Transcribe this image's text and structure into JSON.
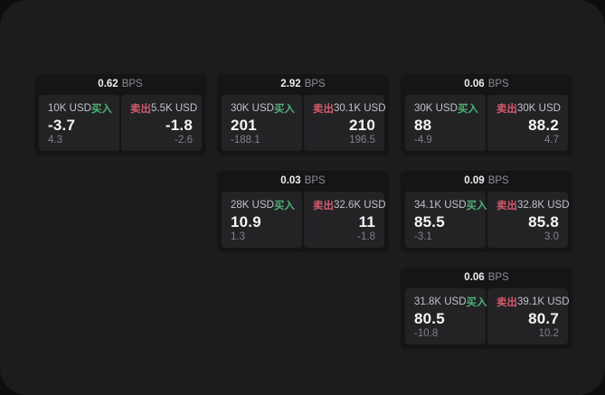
{
  "theme": {
    "bg_outer": "#0e0e10",
    "bg_panel": "#1c1c1e",
    "bg_card": "#151517",
    "bg_subcard": "#232326",
    "buy_green": "#4db173",
    "sell_red": "#d15a6d",
    "text_primary": "#f4f5f7",
    "text_secondary": "#bfc2c6",
    "text_muted": "#7f8286"
  },
  "labels": {
    "bps_suffix": "BPS",
    "buy": "买入",
    "sell": "卖出"
  },
  "cards": [
    {
      "col": 0,
      "row": 0,
      "bps": "0.62",
      "buy": {
        "amount": "10K USD",
        "value": "-3.7",
        "delta": "4.3"
      },
      "sell": {
        "amount": "5.5K USD",
        "value": "-1.8",
        "delta": "-2.6"
      }
    },
    {
      "col": 1,
      "row": 0,
      "bps": "2.92",
      "buy": {
        "amount": "30K USD",
        "value": "201",
        "delta": "-188.1"
      },
      "sell": {
        "amount": "30.1K USD",
        "value": "210",
        "delta": "196.5"
      }
    },
    {
      "col": 2,
      "row": 0,
      "bps": "0.06",
      "buy": {
        "amount": "30K USD",
        "value": "88",
        "delta": "-4.9"
      },
      "sell": {
        "amount": "30K USD",
        "value": "88.2",
        "delta": "4.7"
      }
    },
    {
      "col": 1,
      "row": 1,
      "bps": "0.03",
      "buy": {
        "amount": "28K USD",
        "value": "10.9",
        "delta": "1.3"
      },
      "sell": {
        "amount": "32.6K USD",
        "value": "11",
        "delta": "-1.8"
      }
    },
    {
      "col": 2,
      "row": 1,
      "bps": "0.09",
      "buy": {
        "amount": "34.1K USD",
        "value": "85.5",
        "delta": "-3.1"
      },
      "sell": {
        "amount": "32.8K USD",
        "value": "85.8",
        "delta": "3.0"
      }
    },
    {
      "col": 2,
      "row": 2,
      "bps": "0.06",
      "buy": {
        "amount": "31.8K USD",
        "value": "80.5",
        "delta": "-10.8"
      },
      "sell": {
        "amount": "39.1K USD",
        "value": "80.7",
        "delta": "10.2"
      }
    }
  ]
}
